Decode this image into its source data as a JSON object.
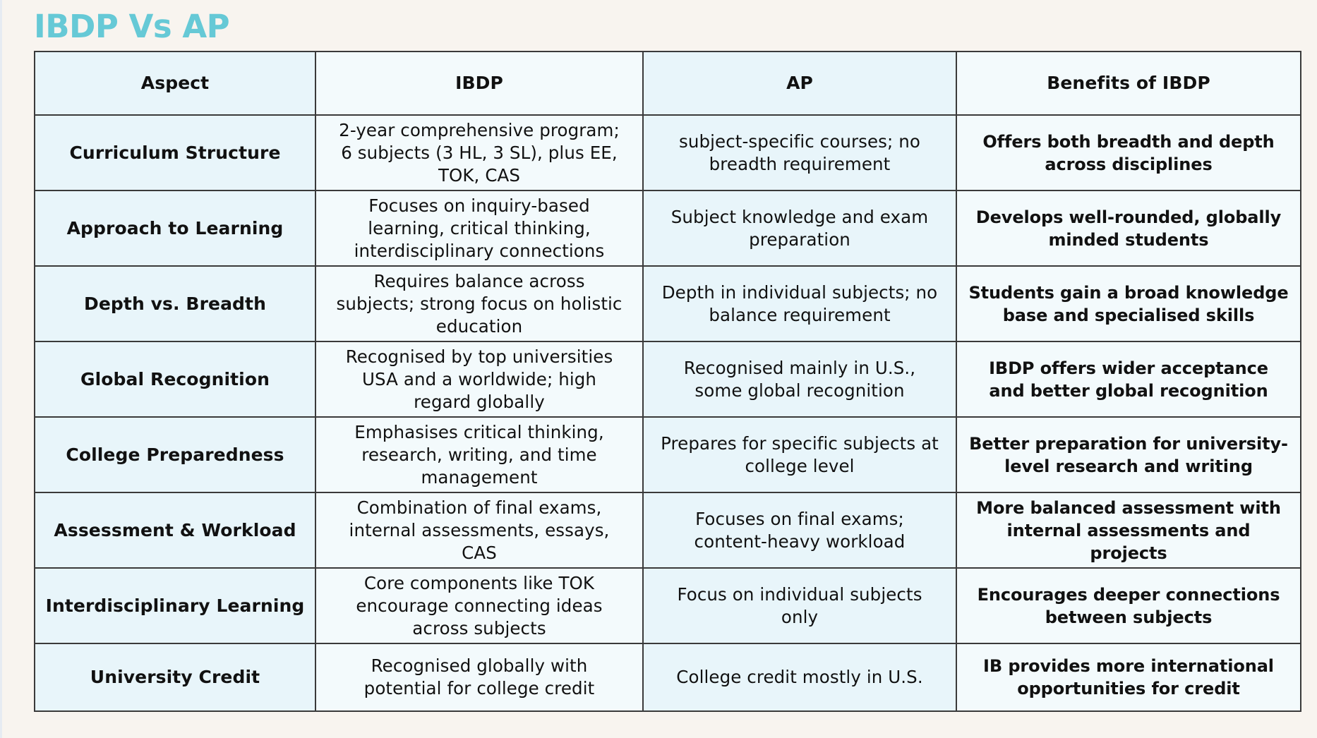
{
  "title": "IBDP Vs AP",
  "colors": {
    "title": "#66C9D6",
    "background": "#F8F4EF",
    "cell_blue": "#E8F5FA",
    "cell_light": "#F3FAFC",
    "border": "#3A3A3A"
  },
  "table": {
    "headers": [
      "Aspect",
      "IBDP",
      "AP",
      "Benefits of IBDP"
    ],
    "rows": [
      {
        "aspect": "Curriculum Structure",
        "ibdp": "2-year comprehensive program;\n6 subjects (3 HL, 3 SL), plus EE,\nTOK, CAS",
        "ap": "subject-specific courses; no\nbreadth requirement",
        "benefit": "Offers both breadth and depth\nacross disciplines"
      },
      {
        "aspect": "Approach to Learning",
        "ibdp": "Focuses on inquiry-based\nlearning, critical thinking,\ninterdisciplinary connections",
        "ap": "Subject knowledge and exam\npreparation",
        "benefit": "Develops well-rounded, globally\nminded students"
      },
      {
        "aspect": "Depth vs. Breadth",
        "ibdp": "Requires balance across\nsubjects; strong focus on holistic\neducation",
        "ap": "Depth in individual subjects; no\nbalance requirement",
        "benefit": "Students gain a broad knowledge\nbase and specialised skills"
      },
      {
        "aspect": "Global Recognition",
        "ibdp": "Recognised by top universities\nUSA and a worldwide; high\nregard globally",
        "ap": "Recognised mainly in U.S.,\nsome global recognition",
        "benefit": "IBDP offers wider acceptance\nand better global recognition"
      },
      {
        "aspect": "College Preparedness",
        "ibdp": "Emphasises critical thinking,\nresearch, writing, and time\nmanagement",
        "ap": "Prepares for specific subjects at\ncollege level",
        "benefit": "Better preparation for university-\nlevel research and writing"
      },
      {
        "aspect": "Assessment & Workload",
        "ibdp": "Combination of final exams,\ninternal assessments, essays,\nCAS",
        "ap": "Focuses on final exams;\ncontent-heavy workload",
        "benefit": "More balanced assessment with\ninternal assessments and\nprojects"
      },
      {
        "aspect": "Interdisciplinary Learning",
        "ibdp": "Core components like TOK\nencourage connecting ideas\nacross subjects",
        "ap": "Focus on individual subjects\nonly",
        "benefit": "Encourages deeper connections\nbetween subjects"
      },
      {
        "aspect": "University Credit",
        "ibdp": "Recognised globally with\npotential for college credit",
        "ap": "College credit mostly in U.S.",
        "benefit": "IB provides more international\nopportunities for credit"
      }
    ]
  }
}
